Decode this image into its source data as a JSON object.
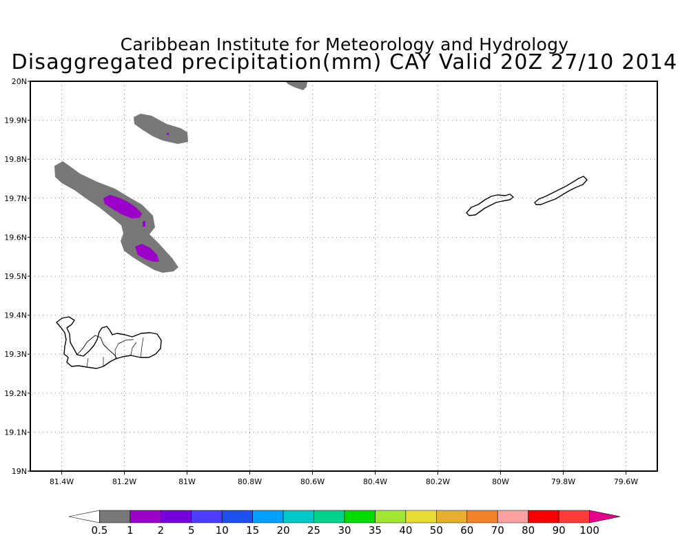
{
  "title": {
    "line1": "Caribbean Institute for Meteorology and Hydrology",
    "line2": "Disaggregated precipitation(mm) CAY Valid 20Z 27/10 2014"
  },
  "map": {
    "lon_range": [
      -81.5,
      -79.5
    ],
    "lat_range": [
      19.0,
      20.0
    ],
    "x_ticks": [
      {
        "lon": -81.4,
        "label": "81.4W"
      },
      {
        "lon": -81.2,
        "label": "81.2W"
      },
      {
        "lon": -81.0,
        "label": "81W"
      },
      {
        "lon": -80.8,
        "label": "80.8W"
      },
      {
        "lon": -80.6,
        "label": "80.6W"
      },
      {
        "lon": -80.4,
        "label": "80.4W"
      },
      {
        "lon": -80.2,
        "label": "80.2W"
      },
      {
        "lon": -80.0,
        "label": "80W"
      },
      {
        "lon": -79.8,
        "label": "79.8W"
      },
      {
        "lon": -79.6,
        "label": "79.6W"
      }
    ],
    "y_ticks": [
      {
        "lat": 19.0,
        "label": "19N"
      },
      {
        "lat": 19.1,
        "label": "19.1N"
      },
      {
        "lat": 19.2,
        "label": "19.2N"
      },
      {
        "lat": 19.3,
        "label": "19.3N"
      },
      {
        "lat": 19.4,
        "label": "19.4N"
      },
      {
        "lat": 19.5,
        "label": "19.5N"
      },
      {
        "lat": 19.6,
        "label": "19.6N"
      },
      {
        "lat": 19.7,
        "label": "19.7N"
      },
      {
        "lat": 19.8,
        "label": "19.8N"
      },
      {
        "lat": 19.9,
        "label": "19.9N"
      },
      {
        "lat": 20.0,
        "label": "20N"
      }
    ],
    "grid": "dotted"
  },
  "colorbar": {
    "levels": [
      "0.5",
      "1",
      "2",
      "5",
      "10",
      "15",
      "20",
      "25",
      "30",
      "35",
      "40",
      "50",
      "60",
      "70",
      "80",
      "90",
      "100"
    ],
    "colors": [
      "#ffffff",
      "#787878",
      "#9a00c8",
      "#7800dc",
      "#4b3cff",
      "#1e50f0",
      "#00a0ff",
      "#00c8c8",
      "#00d28c",
      "#00dc00",
      "#a0e632",
      "#e6dc32",
      "#e6af2d",
      "#f08228",
      "#ffa0a0",
      "#fa0000",
      "#ff3c3c",
      "#e6008c"
    ]
  }
}
